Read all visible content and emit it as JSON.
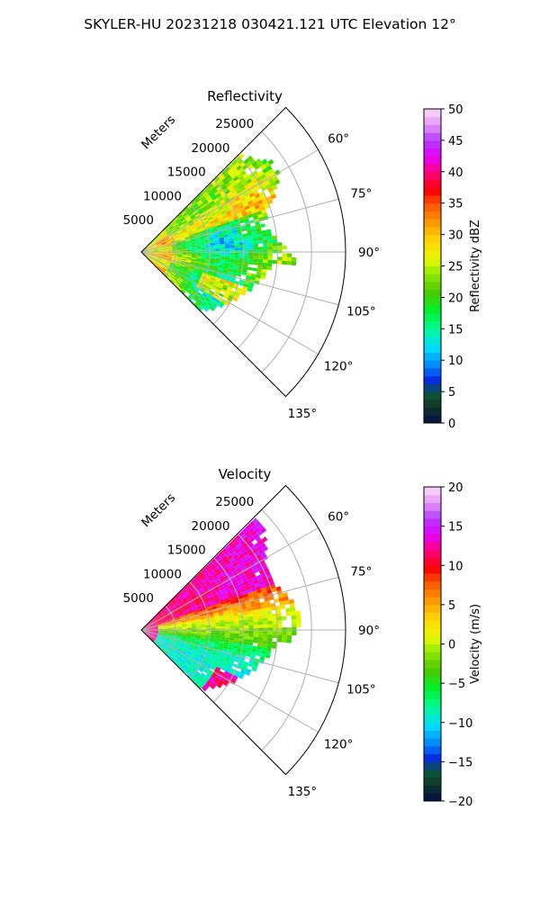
{
  "figure": {
    "suptitle": "SKYLER-HU  20231218  030421.121 UTC Elevation 12°"
  },
  "chart_data": [
    {
      "type": "heatmap",
      "subtype": "polar-sector",
      "title": "Reflectivity",
      "radial_label": "Meters",
      "radial_ticks": [
        5000,
        10000,
        15000,
        20000,
        25000
      ],
      "radial_tick_labels": [
        "5000",
        "10000",
        "15000",
        "20000",
        "25000"
      ],
      "rlim": [
        0,
        30000
      ],
      "azimuth_range_deg": [
        45,
        135
      ],
      "azimuth_ticks": [
        60,
        75,
        90,
        105,
        120,
        135
      ],
      "azimuth_tick_labels": [
        "60°",
        "75°",
        "90°",
        "105°",
        "120°",
        "135°"
      ],
      "grid": true,
      "colorbar": {
        "label": "Reflectivity dBZ",
        "range": [
          0,
          50
        ],
        "ticks": [
          0,
          5,
          10,
          15,
          20,
          25,
          30,
          35,
          40,
          45,
          50
        ],
        "tick_labels": [
          "0",
          "5",
          "10",
          "15",
          "20",
          "25",
          "30",
          "35",
          "40",
          "45",
          "50"
        ],
        "colormap": "pyart_HomeyerRainbow"
      },
      "field_summary": {
        "dominant_range": [
          15,
          25
        ],
        "max_near": 38
      }
    },
    {
      "type": "heatmap",
      "subtype": "polar-sector",
      "title": "Velocity",
      "radial_label": "Meters",
      "radial_ticks": [
        5000,
        10000,
        15000,
        20000,
        25000
      ],
      "radial_tick_labels": [
        "5000",
        "10000",
        "15000",
        "20000",
        "25000"
      ],
      "rlim": [
        0,
        30000
      ],
      "azimuth_range_deg": [
        45,
        135
      ],
      "azimuth_ticks": [
        60,
        75,
        90,
        105,
        120,
        135
      ],
      "azimuth_tick_labels": [
        "60°",
        "75°",
        "90°",
        "105°",
        "120°",
        "135°"
      ],
      "grid": true,
      "colorbar": {
        "label": "Velocity (m/s)",
        "range": [
          -20,
          20
        ],
        "ticks": [
          -20,
          -15,
          -10,
          -5,
          0,
          5,
          10,
          15,
          20
        ],
        "tick_labels": [
          "−20",
          "−15",
          "−10",
          "−5",
          "0",
          "5",
          "10",
          "15",
          "20"
        ],
        "colormap": "pyart_HomeyerRainbow"
      },
      "field_summary": {
        "north_sector": "10 to 15",
        "center": "0 to 5",
        "south_sector": "-10 to -5"
      }
    }
  ]
}
